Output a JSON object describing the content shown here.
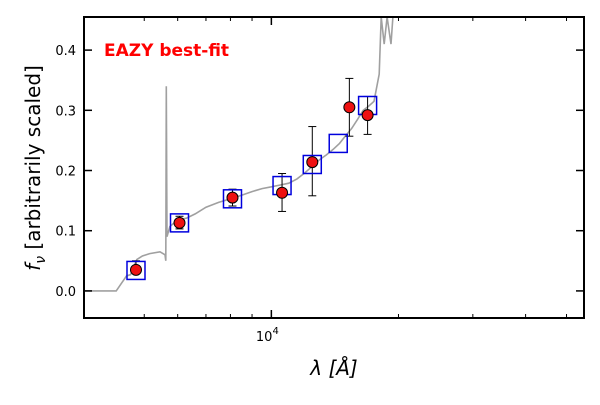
{
  "chart_data": {
    "type": "scatter",
    "xscale": "log",
    "xlim": [
      3600,
      55000
    ],
    "ylim": [
      -0.045,
      0.455
    ],
    "xlabel": "λ [Å]",
    "ylabel": "f_ν [arbitrarily scaled]",
    "ylabel_sub": "ν",
    "x_tick_labels": [
      {
        "value": 10000,
        "base": "10",
        "exp": "4"
      }
    ],
    "x_minor_ticks": [
      5000,
      6000,
      7000,
      8000,
      9000,
      20000,
      30000,
      40000,
      50000
    ],
    "y_ticks": [
      0.0,
      0.1,
      0.2,
      0.3,
      0.4
    ],
    "y_tick_labels": [
      "0.0",
      "0.1",
      "0.2",
      "0.3",
      "0.4"
    ],
    "annotation": "EAZY best-fit",
    "colors": {
      "annotation": "#ff0000",
      "template": "#a0a0a0",
      "model_box": "#0000dd",
      "observed_point": "#ee1111"
    },
    "series": [
      {
        "kind": "observed",
        "points": [
          {
            "x": 4780,
            "y": 0.035,
            "yerr_low": 0.035,
            "yerr_high": 0.05
          },
          {
            "x": 6060,
            "y": 0.113,
            "yerr_low": 0.103,
            "yerr_high": 0.124
          },
          {
            "x": 8090,
            "y": 0.155,
            "yerr_low": 0.141,
            "yerr_high": 0.169
          },
          {
            "x": 10600,
            "y": 0.163,
            "yerr_low": 0.132,
            "yerr_high": 0.195
          },
          {
            "x": 12500,
            "y": 0.214,
            "yerr_low": 0.158,
            "yerr_high": 0.273
          },
          {
            "x": 15300,
            "y": 0.305,
            "yerr_low": 0.257,
            "yerr_high": 0.353
          },
          {
            "x": 16900,
            "y": 0.292,
            "yerr_low": 0.26,
            "yerr_high": 0.323
          }
        ]
      },
      {
        "kind": "model",
        "points": [
          {
            "x": 4780,
            "y": 0.034
          },
          {
            "x": 6060,
            "y": 0.113
          },
          {
            "x": 8090,
            "y": 0.153
          },
          {
            "x": 10600,
            "y": 0.175
          },
          {
            "x": 12500,
            "y": 0.21
          },
          {
            "x": 14400,
            "y": 0.245
          },
          {
            "x": 16900,
            "y": 0.308
          }
        ]
      },
      {
        "kind": "template",
        "points": [
          [
            3600,
            0.0
          ],
          [
            4290,
            0.0
          ],
          [
            4540,
            0.025
          ],
          [
            4640,
            0.027
          ],
          [
            4800,
            0.052
          ],
          [
            4950,
            0.058
          ],
          [
            5150,
            0.062
          ],
          [
            5450,
            0.065
          ],
          [
            5600,
            0.06
          ],
          [
            5625,
            0.05
          ],
          [
            5640,
            0.34
          ],
          [
            5660,
            0.09
          ],
          [
            5750,
            0.107
          ],
          [
            6000,
            0.118
          ],
          [
            6300,
            0.121
          ],
          [
            6600,
            0.128
          ],
          [
            7000,
            0.139
          ],
          [
            7500,
            0.147
          ],
          [
            8000,
            0.153
          ],
          [
            8500,
            0.159
          ],
          [
            9000,
            0.165
          ],
          [
            9500,
            0.17
          ],
          [
            10000,
            0.173
          ],
          [
            10500,
            0.176
          ],
          [
            11000,
            0.179
          ],
          [
            11500,
            0.186
          ],
          [
            12000,
            0.196
          ],
          [
            12500,
            0.207
          ],
          [
            13000,
            0.218
          ],
          [
            13500,
            0.226
          ],
          [
            14000,
            0.235
          ],
          [
            14500,
            0.245
          ],
          [
            15000,
            0.258
          ],
          [
            15500,
            0.27
          ],
          [
            16000,
            0.285
          ],
          [
            16500,
            0.3
          ],
          [
            17000,
            0.307
          ],
          [
            17500,
            0.315
          ],
          [
            18000,
            0.36
          ],
          [
            18200,
            0.455
          ],
          [
            18500,
            0.41
          ],
          [
            18800,
            0.455
          ],
          [
            19200,
            0.41
          ],
          [
            19400,
            0.455
          ]
        ]
      }
    ]
  }
}
